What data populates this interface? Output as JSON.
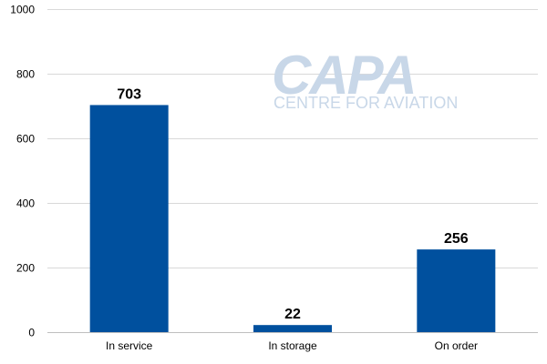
{
  "watermark": {
    "logo": "CAPA",
    "tagline": "CENTRE FOR AVIATION"
  },
  "colors": {
    "bar": "#00509e",
    "grid": "#d9d9d9",
    "axis": "#bfbfbf"
  },
  "chart_data": {
    "type": "bar",
    "categories": [
      "In service",
      "In storage",
      "On order"
    ],
    "values": [
      703,
      22,
      256
    ],
    "value_labels": [
      "703",
      "22",
      "256"
    ],
    "ylim": [
      0,
      1000
    ],
    "yticks": [
      0,
      200,
      400,
      600,
      800,
      1000
    ],
    "ytick_labels": [
      "0",
      "200",
      "400",
      "600",
      "800",
      "1000"
    ],
    "grid": true,
    "legend": "none",
    "title": "",
    "xlabel": "",
    "ylabel": ""
  }
}
